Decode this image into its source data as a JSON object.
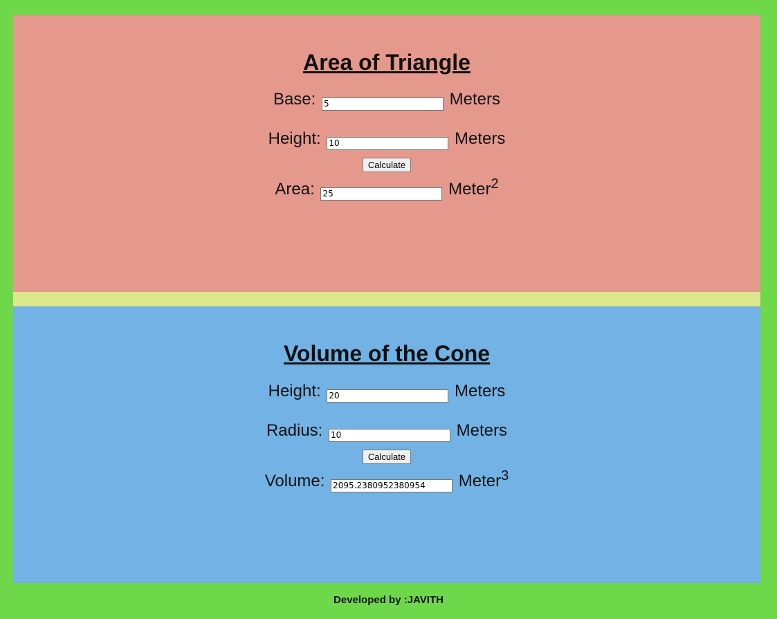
{
  "triangle": {
    "title": "Area of Triangle",
    "base_label": "Base:",
    "base_value": "5",
    "base_unit": "Meters",
    "height_label": "Height:",
    "height_value": "10",
    "height_unit": "Meters",
    "calculate_label": "Calculate",
    "area_label": "Area:",
    "area_value": "25",
    "area_unit": "Meter",
    "area_exponent": "2"
  },
  "cone": {
    "title": "Volume of the Cone",
    "height_label": "Height:",
    "height_value": "20",
    "height_unit": "Meters",
    "radius_label": "Radius:",
    "radius_value": "10",
    "radius_unit": "Meters",
    "calculate_label": "Calculate",
    "volume_label": "Volume:",
    "volume_value": "2095.2380952380954",
    "volume_unit": "Meter",
    "volume_exponent": "3"
  },
  "footer": {
    "text": "Developed by :JAVITH"
  },
  "colors": {
    "page_background": "#6fd84a",
    "triangle_panel": "#e5998c",
    "divider": "#dce88f",
    "cone_panel": "#72b2e4"
  }
}
